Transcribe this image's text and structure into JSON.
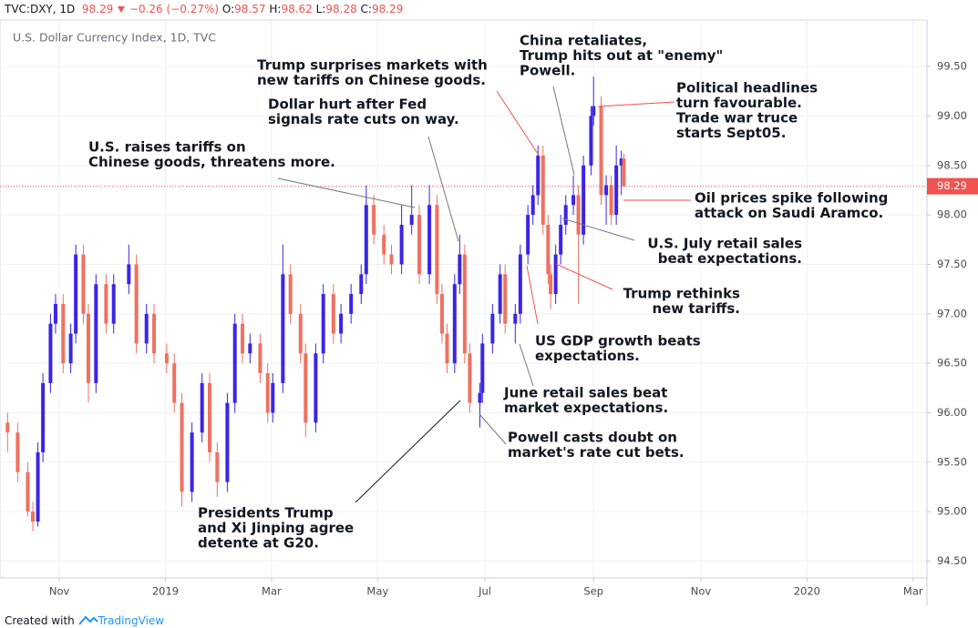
{
  "chart_data": {
    "type": "candlestick",
    "header": {
      "symbol": "TVC:DXY, 1D",
      "last": "98.29",
      "change": "−0.26 (−0.27%)",
      "ohlc": [
        {
          "label": "O:",
          "value": 98.57
        },
        {
          "label": "H:",
          "value": 98.62
        },
        {
          "label": "L:",
          "value": 98.28
        },
        {
          "label": "C:",
          "value": 98.29
        }
      ]
    },
    "subtitle": "U.S. Dollar Currency Index, 1D, TVC",
    "up_color": "#3a25e6",
    "down_color": "#ef7161",
    "last_price": {
      "value": 98.29,
      "label": "98.29"
    },
    "xlim": [
      -3,
      364
    ],
    "ylim": [
      94.33,
      99.97
    ],
    "xticks": [
      {
        "value": 20.5,
        "label": "Nov"
      },
      {
        "value": 62.5,
        "label": "2019"
      },
      {
        "value": 104.5,
        "label": "Mar"
      },
      {
        "value": 146.5,
        "label": "May"
      },
      {
        "value": 189,
        "label": "Jul"
      },
      {
        "value": 232,
        "label": "Sep"
      },
      {
        "value": 274.5,
        "label": "Nov"
      },
      {
        "value": 316.5,
        "label": "2020"
      },
      {
        "value": 358.5,
        "label": "Mar"
      }
    ],
    "yticks": [
      {
        "value": 94.5,
        "label": "94.50"
      },
      {
        "value": 95,
        "label": "95.00"
      },
      {
        "value": 95.5,
        "label": "95.50"
      },
      {
        "value": 96,
        "label": "96.00"
      },
      {
        "value": 96.5,
        "label": "96.50"
      },
      {
        "value": 97,
        "label": "97.00"
      },
      {
        "value": 97.5,
        "label": "97.50"
      },
      {
        "value": 98,
        "label": "98.00"
      },
      {
        "value": 98.5,
        "label": "98.50"
      },
      {
        "value": 99,
        "label": "99.00"
      },
      {
        "value": 99.5,
        "label": "99.50"
      }
    ],
    "grid": true,
    "candles": [
      {
        "x": 0,
        "open": 95.9,
        "high": 96.0,
        "low": 95.6,
        "close": 95.8
      },
      {
        "x": 4,
        "open": 95.8,
        "high": 95.9,
        "low": 95.3,
        "close": 95.4
      },
      {
        "x": 8,
        "open": 95.4,
        "high": 95.5,
        "low": 94.95,
        "close": 95.0
      },
      {
        "x": 10,
        "open": 95.0,
        "high": 95.1,
        "low": 94.8,
        "close": 94.9
      },
      {
        "x": 12,
        "open": 94.9,
        "high": 95.7,
        "low": 94.85,
        "close": 95.6
      },
      {
        "x": 14,
        "open": 95.6,
        "high": 96.4,
        "low": 95.5,
        "close": 96.3
      },
      {
        "x": 17,
        "open": 96.3,
        "high": 97.0,
        "low": 96.2,
        "close": 96.9
      },
      {
        "x": 19,
        "open": 96.9,
        "high": 97.2,
        "low": 96.8,
        "close": 97.1
      },
      {
        "x": 22,
        "open": 97.1,
        "high": 97.2,
        "low": 96.4,
        "close": 96.5
      },
      {
        "x": 25,
        "open": 96.5,
        "high": 96.9,
        "low": 96.4,
        "close": 96.8
      },
      {
        "x": 27,
        "open": 96.8,
        "high": 97.7,
        "low": 96.7,
        "close": 97.6
      },
      {
        "x": 30,
        "open": 97.6,
        "high": 97.7,
        "low": 96.9,
        "close": 97.0
      },
      {
        "x": 32,
        "open": 97.0,
        "high": 97.1,
        "low": 96.1,
        "close": 96.3
      },
      {
        "x": 35,
        "open": 96.3,
        "high": 97.4,
        "low": 96.2,
        "close": 97.3
      },
      {
        "x": 39,
        "open": 97.3,
        "high": 97.4,
        "low": 96.8,
        "close": 96.9
      },
      {
        "x": 42,
        "open": 96.9,
        "high": 97.4,
        "low": 96.8,
        "close": 97.3
      },
      {
        "x": 48,
        "open": 97.3,
        "high": 97.7,
        "low": 97.2,
        "close": 97.5
      },
      {
        "x": 51,
        "open": 97.5,
        "high": 97.6,
        "low": 96.6,
        "close": 96.7
      },
      {
        "x": 55,
        "open": 96.7,
        "high": 97.1,
        "low": 96.6,
        "close": 97.0
      },
      {
        "x": 58,
        "open": 97.0,
        "high": 97.1,
        "low": 96.5,
        "close": 96.6
      },
      {
        "x": 63,
        "open": 96.6,
        "high": 96.7,
        "low": 96.4,
        "close": 96.5
      },
      {
        "x": 66,
        "open": 96.5,
        "high": 96.6,
        "low": 96.0,
        "close": 96.1
      },
      {
        "x": 69,
        "open": 96.1,
        "high": 96.2,
        "low": 95.05,
        "close": 95.2
      },
      {
        "x": 73,
        "open": 95.2,
        "high": 95.9,
        "low": 95.1,
        "close": 95.8
      },
      {
        "x": 77,
        "open": 95.8,
        "high": 96.4,
        "low": 95.7,
        "close": 96.3
      },
      {
        "x": 80,
        "open": 96.3,
        "high": 96.4,
        "low": 95.5,
        "close": 95.6
      },
      {
        "x": 83,
        "open": 95.6,
        "high": 95.7,
        "low": 95.15,
        "close": 95.3
      },
      {
        "x": 87,
        "open": 95.3,
        "high": 96.2,
        "low": 95.2,
        "close": 96.1
      },
      {
        "x": 90,
        "open": 96.1,
        "high": 97.0,
        "low": 96.0,
        "close": 96.9
      },
      {
        "x": 93,
        "open": 96.9,
        "high": 97.0,
        "low": 96.5,
        "close": 96.6
      },
      {
        "x": 96,
        "open": 96.6,
        "high": 96.8,
        "low": 96.5,
        "close": 96.7
      },
      {
        "x": 100,
        "open": 96.7,
        "high": 96.8,
        "low": 96.3,
        "close": 96.4
      },
      {
        "x": 103,
        "open": 96.4,
        "high": 96.5,
        "low": 95.9,
        "close": 96.0
      },
      {
        "x": 105,
        "open": 96.0,
        "high": 96.4,
        "low": 95.9,
        "close": 96.3
      },
      {
        "x": 109,
        "open": 96.3,
        "high": 97.7,
        "low": 96.2,
        "close": 97.4
      },
      {
        "x": 112,
        "open": 97.4,
        "high": 97.5,
        "low": 96.9,
        "close": 97.0
      },
      {
        "x": 116,
        "open": 97.0,
        "high": 97.1,
        "low": 96.5,
        "close": 96.6
      },
      {
        "x": 118,
        "open": 96.6,
        "high": 96.7,
        "low": 95.75,
        "close": 95.9
      },
      {
        "x": 122,
        "open": 95.9,
        "high": 96.7,
        "low": 95.8,
        "close": 96.6
      },
      {
        "x": 125,
        "open": 96.6,
        "high": 97.3,
        "low": 96.5,
        "close": 97.2
      },
      {
        "x": 129,
        "open": 97.2,
        "high": 97.3,
        "low": 96.7,
        "close": 96.8
      },
      {
        "x": 132,
        "open": 96.8,
        "high": 97.1,
        "low": 96.7,
        "close": 97.0
      },
      {
        "x": 136,
        "open": 97.0,
        "high": 97.3,
        "low": 96.9,
        "close": 97.2
      },
      {
        "x": 140,
        "open": 97.2,
        "high": 97.5,
        "low": 97.1,
        "close": 97.4
      },
      {
        "x": 142,
        "open": 97.4,
        "high": 98.3,
        "low": 97.3,
        "close": 98.1
      },
      {
        "x": 145,
        "open": 98.1,
        "high": 98.2,
        "low": 97.7,
        "close": 97.8
      },
      {
        "x": 149,
        "open": 97.8,
        "high": 97.9,
        "low": 97.5,
        "close": 97.6
      },
      {
        "x": 152,
        "open": 97.6,
        "high": 97.7,
        "low": 97.4,
        "close": 97.5
      },
      {
        "x": 156,
        "open": 97.5,
        "high": 98.1,
        "low": 97.4,
        "close": 97.9
      },
      {
        "x": 160,
        "open": 97.9,
        "high": 98.3,
        "low": 97.8,
        "close": 98.0
      },
      {
        "x": 163,
        "open": 98.0,
        "high": 98.1,
        "low": 97.3,
        "close": 97.4
      },
      {
        "x": 167,
        "open": 97.4,
        "high": 98.3,
        "low": 97.3,
        "close": 98.1
      },
      {
        "x": 170,
        "open": 98.1,
        "high": 98.2,
        "low": 97.1,
        "close": 97.2
      },
      {
        "x": 172,
        "open": 97.2,
        "high": 97.3,
        "low": 96.7,
        "close": 96.8
      },
      {
        "x": 174,
        "open": 96.8,
        "high": 96.9,
        "low": 96.4,
        "close": 96.5
      },
      {
        "x": 177,
        "open": 96.5,
        "high": 97.4,
        "low": 96.4,
        "close": 97.3
      },
      {
        "x": 179,
        "open": 97.3,
        "high": 97.8,
        "low": 97.2,
        "close": 97.6
      },
      {
        "x": 181,
        "open": 97.6,
        "high": 97.7,
        "low": 96.5,
        "close": 96.6
      },
      {
        "x": 183,
        "open": 96.6,
        "high": 96.7,
        "low": 96.0,
        "close": 96.1
      },
      {
        "x": 187,
        "open": 96.1,
        "high": 96.3,
        "low": 95.85,
        "close": 96.2
      },
      {
        "x": 188,
        "open": 96.2,
        "high": 96.8,
        "low": 96.1,
        "close": 96.7
      },
      {
        "x": 192,
        "open": 96.7,
        "high": 97.1,
        "low": 96.6,
        "close": 97.0
      },
      {
        "x": 195,
        "open": 97.0,
        "high": 97.5,
        "low": 96.9,
        "close": 97.4
      },
      {
        "x": 197,
        "open": 97.4,
        "high": 97.5,
        "low": 96.8,
        "close": 96.9
      },
      {
        "x": 201,
        "open": 96.9,
        "high": 97.1,
        "low": 96.7,
        "close": 97.0
      },
      {
        "x": 203,
        "open": 97.0,
        "high": 97.7,
        "low": 96.9,
        "close": 97.6
      },
      {
        "x": 206,
        "open": 97.6,
        "high": 98.1,
        "low": 97.5,
        "close": 98.0
      },
      {
        "x": 208,
        "open": 98.0,
        "high": 98.3,
        "low": 97.9,
        "close": 98.2
      },
      {
        "x": 210,
        "open": 98.2,
        "high": 98.7,
        "low": 98.1,
        "close": 98.6
      },
      {
        "x": 212,
        "open": 98.6,
        "high": 98.7,
        "low": 97.8,
        "close": 97.9
      },
      {
        "x": 214,
        "open": 97.9,
        "high": 98.0,
        "low": 97.3,
        "close": 97.4
      },
      {
        "x": 215,
        "open": 97.4,
        "high": 97.5,
        "low": 97.05,
        "close": 97.2
      },
      {
        "x": 217,
        "open": 97.2,
        "high": 97.7,
        "low": 97.1,
        "close": 97.6
      },
      {
        "x": 219,
        "open": 97.6,
        "high": 98.0,
        "low": 97.5,
        "close": 97.9
      },
      {
        "x": 221,
        "open": 97.9,
        "high": 98.2,
        "low": 97.8,
        "close": 98.1
      },
      {
        "x": 224,
        "open": 98.1,
        "high": 98.4,
        "low": 98.0,
        "close": 98.2
      },
      {
        "x": 226,
        "open": 98.2,
        "high": 98.3,
        "low": 97.1,
        "close": 97.8
      },
      {
        "x": 228,
        "open": 97.8,
        "high": 98.6,
        "low": 97.7,
        "close": 98.5
      },
      {
        "x": 231,
        "open": 98.5,
        "high": 99.1,
        "low": 98.4,
        "close": 99.0
      },
      {
        "x": 232,
        "open": 99.0,
        "high": 99.4,
        "low": 98.9,
        "close": 99.1
      },
      {
        "x": 235,
        "open": 99.1,
        "high": 99.2,
        "low": 98.1,
        "close": 98.2
      },
      {
        "x": 237,
        "open": 98.2,
        "high": 98.4,
        "low": 97.9,
        "close": 98.3
      },
      {
        "x": 239,
        "open": 98.3,
        "high": 98.4,
        "low": 97.9,
        "close": 98.0
      },
      {
        "x": 241,
        "open": 98.0,
        "high": 98.7,
        "low": 97.9,
        "close": 98.5
      },
      {
        "x": 243,
        "open": 98.5,
        "high": 98.65,
        "low": 98.2,
        "close": 98.57
      },
      {
        "x": 244,
        "open": 98.57,
        "high": 98.62,
        "low": 98.28,
        "close": 98.29
      }
    ],
    "annotations": [
      {
        "lines": [
          "China retaliates,",
          "Trump hits out at \"enemy\"",
          "Powell."
        ]
      },
      {
        "lines": [
          "Trump surprises markets with",
          "new tariffs on Chinese goods."
        ]
      },
      {
        "lines": [
          "Political headlines",
          "turn favourable.",
          "Trade war truce",
          "starts Sept05."
        ]
      },
      {
        "lines": [
          "Dollar hurt after Fed",
          "signals rate cuts on way."
        ]
      },
      {
        "lines": [
          "U.S. raises tariffs on",
          "Chinese goods, threatens more."
        ]
      },
      {
        "lines": [
          "Oil prices spike following",
          "attack on Saudi Aramco."
        ]
      },
      {
        "lines": [
          "U.S. July retail sales",
          "beat expectations."
        ]
      },
      {
        "lines": [
          "Trump rethinks",
          "new tariffs."
        ]
      },
      {
        "lines": [
          "US GDP growth beats",
          "expectations."
        ]
      },
      {
        "lines": [
          "June retail sales beat",
          "market expectations."
        ]
      },
      {
        "lines": [
          "Powell casts doubt on",
          "market's rate cut bets."
        ]
      },
      {
        "lines": [
          "Presidents Trump",
          "and Xi Jinping agree",
          "detente at G20."
        ]
      }
    ]
  },
  "footer": {
    "created": "Created with",
    "brand": "TradingView"
  }
}
